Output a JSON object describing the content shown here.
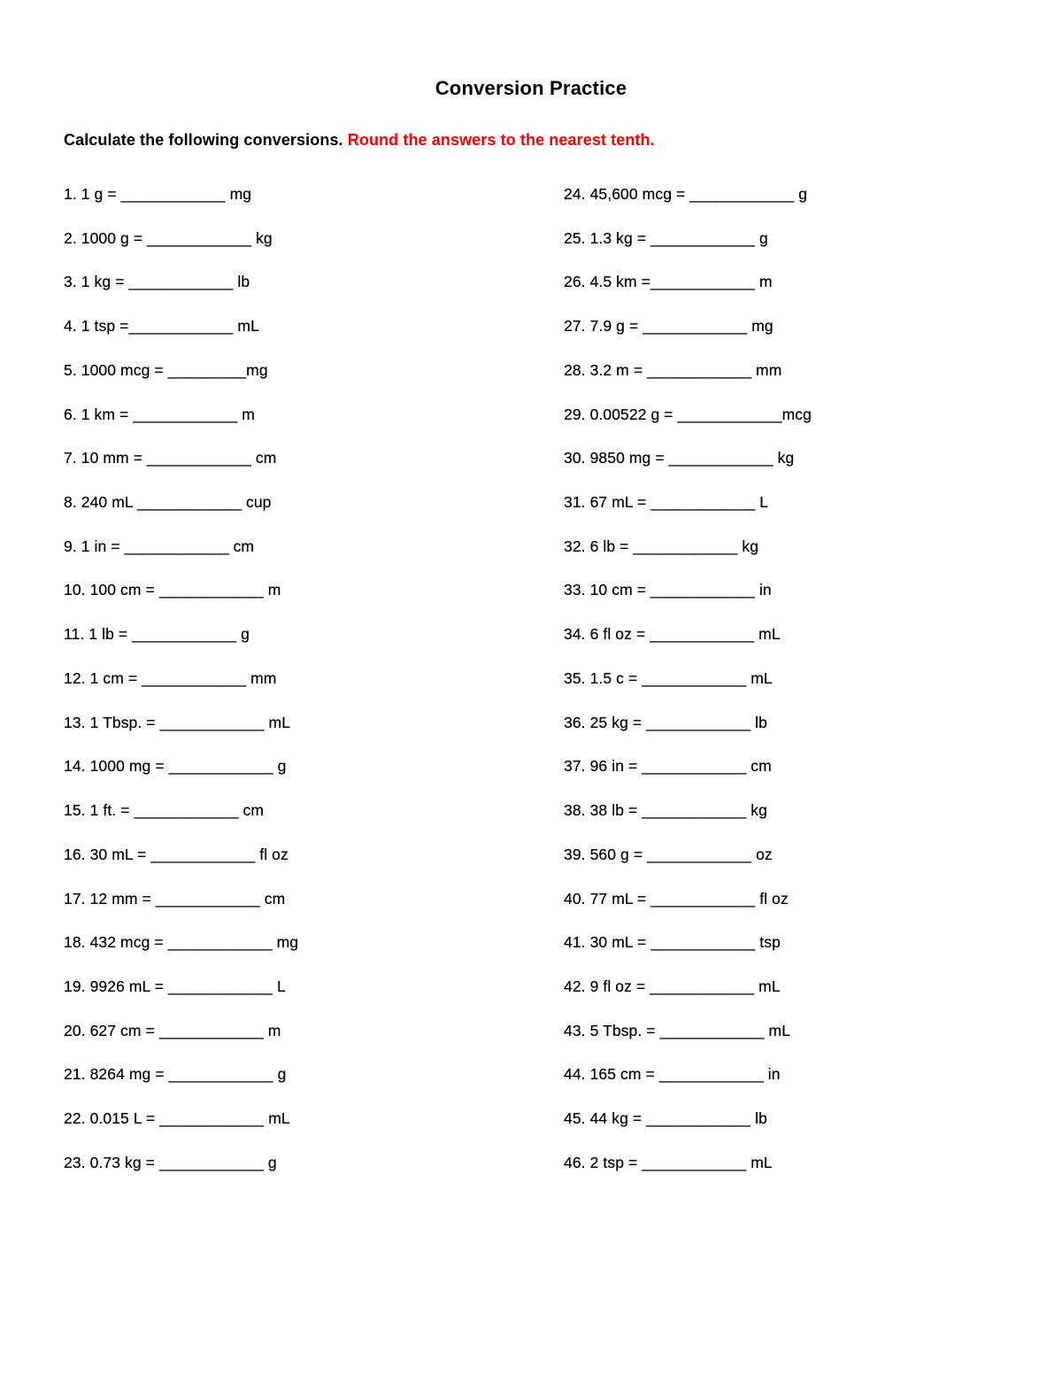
{
  "title": "Conversion Practice",
  "instructions": {
    "main": "Calculate the following conversions.",
    "highlight": "Round the answers to the nearest tenth."
  },
  "colors": {
    "text": "#000000",
    "highlight_red": "#ff0000",
    "page_background": "#ffffff"
  },
  "problems": {
    "left": [
      "1. 1 g = ____________ mg",
      "2. 1000 g = ____________ kg",
      "3. 1 kg = ____________ lb",
      "4. 1 tsp =____________ mL",
      "5. 1000 mcg = _________mg",
      "6. 1 km = ____________ m",
      "7. 10 mm = ____________ cm",
      "8. 240 mL ____________ cup",
      "9. 1 in = ____________ cm",
      "10. 100 cm = ____________ m",
      "11. 1 lb = ____________ g",
      "12. 1 cm = ____________ mm",
      "13. 1 Tbsp. = ____________ mL",
      "14. 1000 mg = ____________ g",
      "15. 1 ft. = ____________ cm",
      "16. 30 mL = ____________ fl oz",
      "17. 12 mm = ____________ cm",
      "18. 432 mcg = ____________ mg",
      "19. 9926 mL = ____________ L",
      "20. 627 cm = ____________ m",
      "21. 8264 mg = ____________ g",
      "22. 0.015 L = ____________ mL",
      "23. 0.73 kg = ____________ g"
    ],
    "right": [
      "24. 45,600 mcg = ____________ g",
      "25. 1.3 kg = ____________ g",
      "26. 4.5 km =____________ m",
      "27. 7.9 g = ____________ mg",
      "28. 3.2 m = ____________ mm",
      "29. 0.00522 g = ____________mcg",
      "30. 9850 mg = ____________ kg",
      "31. 67 mL = ____________ L",
      "32. 6 lb = ____________ kg",
      "33. 10 cm = ____________ in",
      "34. 6 fl oz = ____________ mL",
      "35. 1.5 c = ____________ mL",
      "36. 25 kg = ____________ lb",
      "37. 96 in = ____________ cm",
      "38. 38 lb = ____________ kg",
      "39. 560 g = ____________ oz",
      "40. 77 mL = ____________ fl oz",
      "41. 30 mL = ____________ tsp",
      "42. 9 fl oz = ____________ mL",
      "43. 5 Tbsp. = ____________ mL",
      "44. 165 cm = ____________ in",
      "45. 44 kg = ____________ lb",
      "46. 2 tsp = ____________ mL"
    ]
  }
}
